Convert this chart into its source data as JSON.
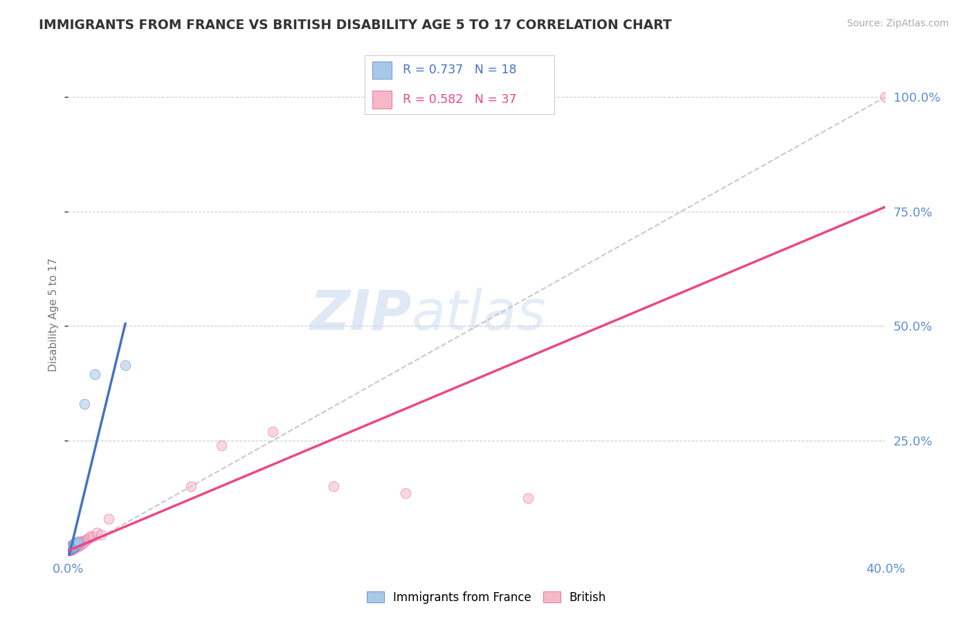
{
  "title": "IMMIGRANTS FROM FRANCE VS BRITISH DISABILITY AGE 5 TO 17 CORRELATION CHART",
  "source": "Source: ZipAtlas.com",
  "ylabel": "Disability Age 5 to 17",
  "legend1_text": "R = 0.737   N = 18",
  "legend2_text": "R = 0.582   N = 37",
  "legend1_label": "Immigrants from France",
  "legend2_label": "British",
  "color_blue": "#a8c8e8",
  "color_pink": "#f4b8c8",
  "color_blue_line": "#4472c4",
  "color_pink_line": "#e84888",
  "color_diag": "#bbbbbb",
  "france_x": [
    0.0,
    0.001,
    0.001,
    0.001,
    0.002,
    0.002,
    0.002,
    0.002,
    0.003,
    0.003,
    0.003,
    0.004,
    0.004,
    0.005,
    0.005,
    0.008,
    0.013,
    0.028
  ],
  "france_y": [
    0.01,
    0.012,
    0.014,
    0.016,
    0.015,
    0.017,
    0.02,
    0.022,
    0.018,
    0.02,
    0.025,
    0.022,
    0.025,
    0.025,
    0.03,
    0.33,
    0.395,
    0.415
  ],
  "british_x": [
    0.0,
    0.001,
    0.001,
    0.001,
    0.001,
    0.002,
    0.002,
    0.002,
    0.002,
    0.003,
    0.003,
    0.003,
    0.003,
    0.004,
    0.004,
    0.004,
    0.005,
    0.005,
    0.006,
    0.006,
    0.007,
    0.007,
    0.008,
    0.009,
    0.01,
    0.011,
    0.012,
    0.014,
    0.016,
    0.02,
    0.06,
    0.075,
    0.1,
    0.13,
    0.165,
    0.225,
    0.4
  ],
  "british_y": [
    0.01,
    0.01,
    0.012,
    0.015,
    0.018,
    0.012,
    0.015,
    0.018,
    0.022,
    0.015,
    0.018,
    0.02,
    0.025,
    0.018,
    0.022,
    0.028,
    0.02,
    0.028,
    0.022,
    0.03,
    0.025,
    0.032,
    0.03,
    0.035,
    0.038,
    0.042,
    0.04,
    0.05,
    0.045,
    0.08,
    0.15,
    0.24,
    0.27,
    0.15,
    0.135,
    0.125,
    1.0
  ],
  "xmin": 0.0,
  "xmax": 0.4,
  "ymin": 0.0,
  "ymax": 1.05,
  "background_color": "#ffffff",
  "grid_color": "#cccccc"
}
